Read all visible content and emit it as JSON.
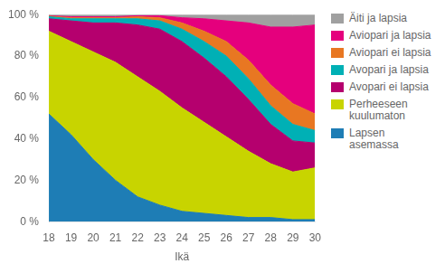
{
  "chart_data": {
    "type": "area",
    "stacked": true,
    "xlabel": "Ikä",
    "x": [
      18,
      19,
      20,
      21,
      22,
      23,
      24,
      25,
      26,
      27,
      28,
      29,
      30
    ],
    "xlim": [
      18,
      30
    ],
    "xticks": [
      18,
      19,
      20,
      21,
      22,
      23,
      24,
      25,
      26,
      27,
      28,
      29,
      30
    ],
    "ylim": [
      0,
      100
    ],
    "yticks": [
      {
        "value": 0,
        "label": "0 %"
      },
      {
        "value": 20,
        "label": "20 %"
      },
      {
        "value": 40,
        "label": "40 %"
      },
      {
        "value": 60,
        "label": "60 %"
      },
      {
        "value": 80,
        "label": "80 %"
      },
      {
        "value": 100,
        "label": "100 %"
      }
    ],
    "grid": false,
    "legend": "right",
    "series": [
      {
        "name": "Lapsen\nasemassa",
        "color": "#1e7db5",
        "values": [
          52,
          42,
          30,
          20,
          12,
          8,
          5,
          4,
          3,
          2,
          2,
          1,
          1
        ]
      },
      {
        "name": "Perheeseen\nkuulumaton",
        "color": "#c8d400",
        "values": [
          40,
          45,
          52,
          57,
          58,
          55,
          50,
          44,
          38,
          32,
          26,
          23,
          25
        ]
      },
      {
        "name": "Avopari ei lapsia",
        "color": "#b5006e",
        "values": [
          6,
          10,
          14,
          19,
          25,
          30,
          32,
          31,
          29,
          25,
          19,
          15,
          12
        ]
      },
      {
        "name": "Avopari ja lapsia",
        "color": "#00b0b5",
        "values": [
          1,
          1,
          2,
          2,
          3,
          4,
          6,
          8,
          10,
          10,
          9,
          8,
          6
        ]
      },
      {
        "name": "Aviopari ei lapsia",
        "color": "#e87722",
        "values": [
          0.3,
          0.5,
          0.5,
          0.5,
          1,
          1.5,
          3,
          5,
          7,
          9,
          10,
          10,
          8
        ]
      },
      {
        "name": "Aviopari ja lapsia",
        "color": "#e5007d",
        "values": [
          0.2,
          0.5,
          0.5,
          0.5,
          0.5,
          1,
          2.5,
          6,
          10,
          18,
          28,
          37,
          43
        ]
      },
      {
        "name": "Äiti ja lapsia",
        "color": "#a0a0a0",
        "values": [
          0.5,
          1,
          1,
          1,
          0.5,
          0.5,
          1.5,
          2,
          3,
          4,
          6,
          6,
          5
        ]
      }
    ]
  }
}
